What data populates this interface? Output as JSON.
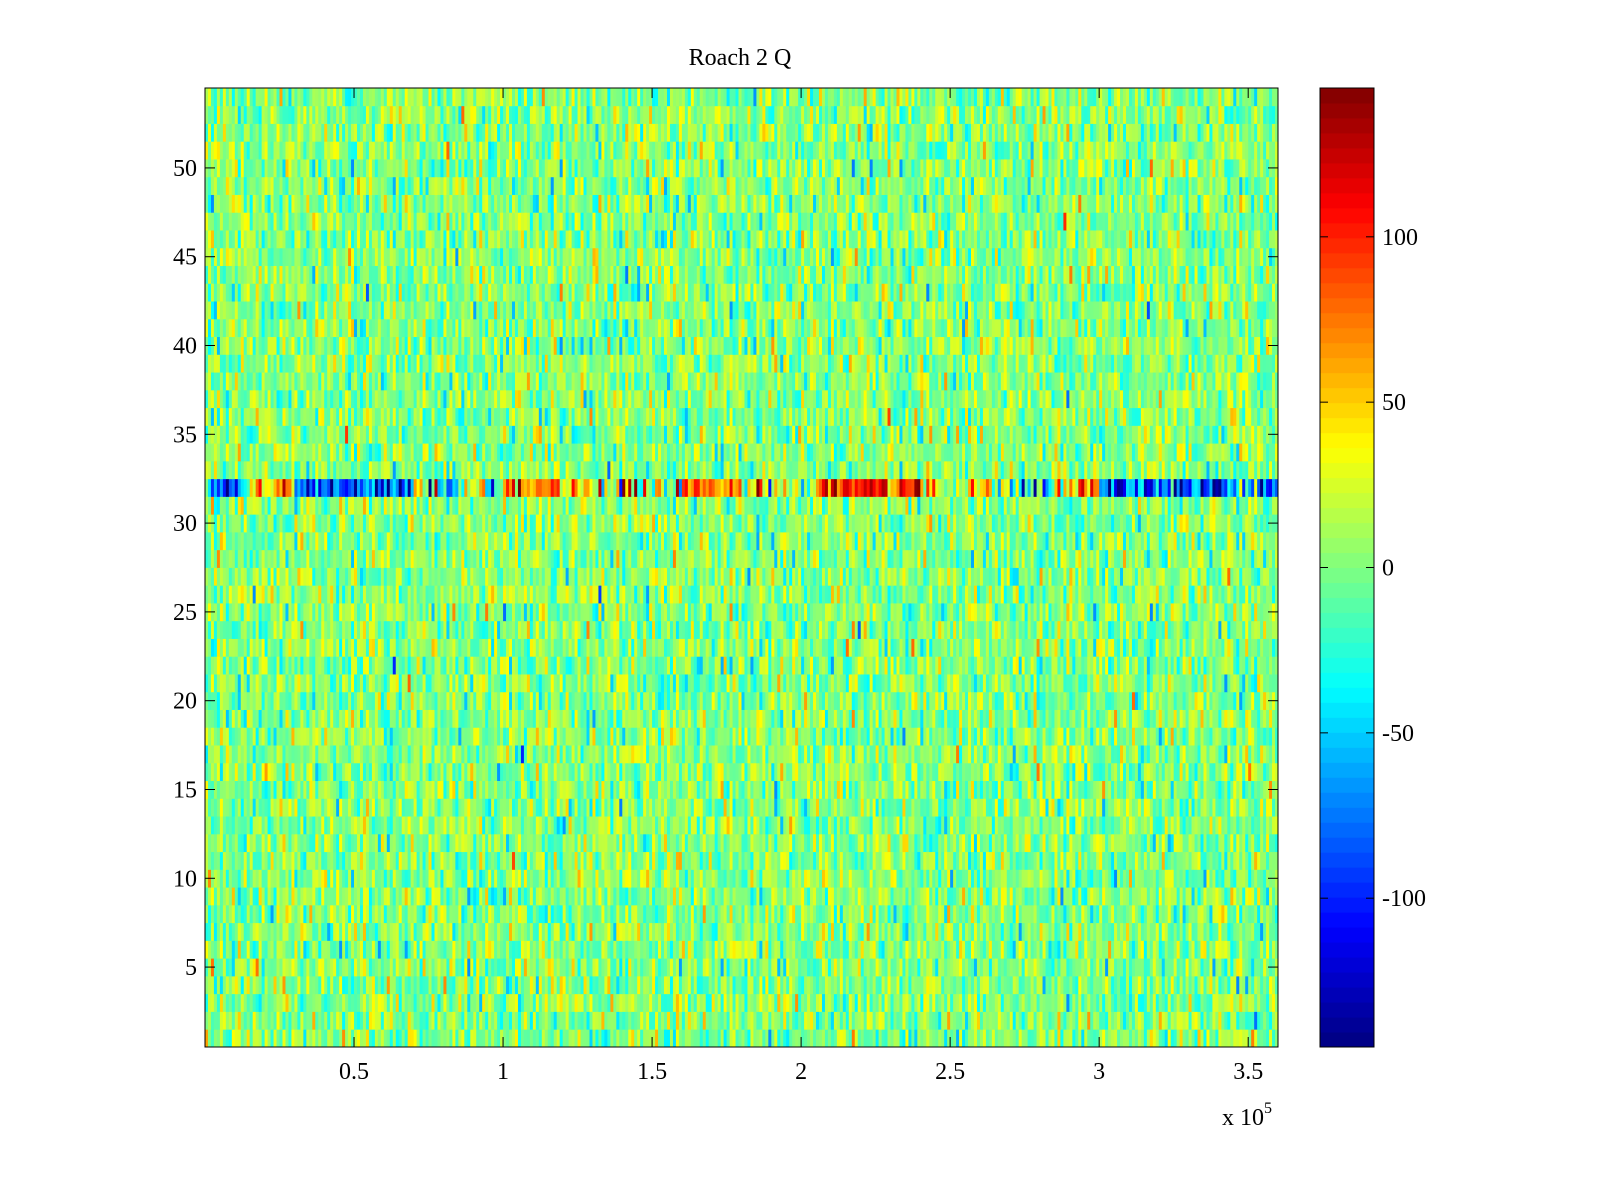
{
  "chart_data": {
    "type": "heatmap",
    "title": "Roach 2 Q",
    "xlabel": "",
    "ylabel": "",
    "x_exponent_label": "x 10",
    "x_exponent": "5",
    "xlim": [
      0,
      3.6
    ],
    "ylim": [
      0.5,
      54.5
    ],
    "rows": 54,
    "columns": 360,
    "xticks": [
      0.5,
      1,
      1.5,
      2,
      2.5,
      3,
      3.5
    ],
    "xtick_labels": [
      "0.5",
      "1",
      "1.5",
      "2",
      "2.5",
      "3",
      "3.5"
    ],
    "yticks": [
      5,
      10,
      15,
      20,
      25,
      30,
      35,
      40,
      45,
      50
    ],
    "ytick_labels": [
      "5",
      "10",
      "15",
      "20",
      "25",
      "30",
      "35",
      "40",
      "45",
      "50"
    ],
    "colormap": "jet",
    "clim": [
      -145,
      145
    ],
    "colorbar": {
      "ticks": [
        100,
        50,
        0,
        -50,
        -100
      ],
      "tick_labels": [
        "100",
        "50",
        "0",
        "-50",
        "-100"
      ],
      "placement": "right"
    },
    "background_noise": {
      "mean": 2,
      "std": 22,
      "seed": 7
    },
    "highlighted_row": {
      "row": 32,
      "segments": [
        {
          "x": [
            0.0,
            0.15
          ],
          "mean": -60,
          "std": 50
        },
        {
          "x": [
            0.15,
            0.3
          ],
          "mean": 60,
          "std": 40
        },
        {
          "x": [
            0.3,
            0.7
          ],
          "mean": -75,
          "std": 35
        },
        {
          "x": [
            0.7,
            1.0
          ],
          "mean": 10,
          "std": 60
        },
        {
          "x": [
            1.0,
            1.3
          ],
          "mean": 55,
          "std": 35
        },
        {
          "x": [
            1.3,
            1.6
          ],
          "mean": 5,
          "std": 60
        },
        {
          "x": [
            1.6,
            1.8
          ],
          "mean": 70,
          "std": 35
        },
        {
          "x": [
            1.8,
            2.05
          ],
          "mean": 30,
          "std": 55
        },
        {
          "x": [
            2.05,
            2.4
          ],
          "mean": 105,
          "std": 30
        },
        {
          "x": [
            2.4,
            2.7
          ],
          "mean": 40,
          "std": 45
        },
        {
          "x": [
            2.7,
            2.9
          ],
          "mean": -20,
          "std": 60
        },
        {
          "x": [
            2.9,
            3.0
          ],
          "mean": 60,
          "std": 40
        },
        {
          "x": [
            3.0,
            3.6
          ],
          "mean": -80,
          "std": 40
        }
      ]
    }
  }
}
